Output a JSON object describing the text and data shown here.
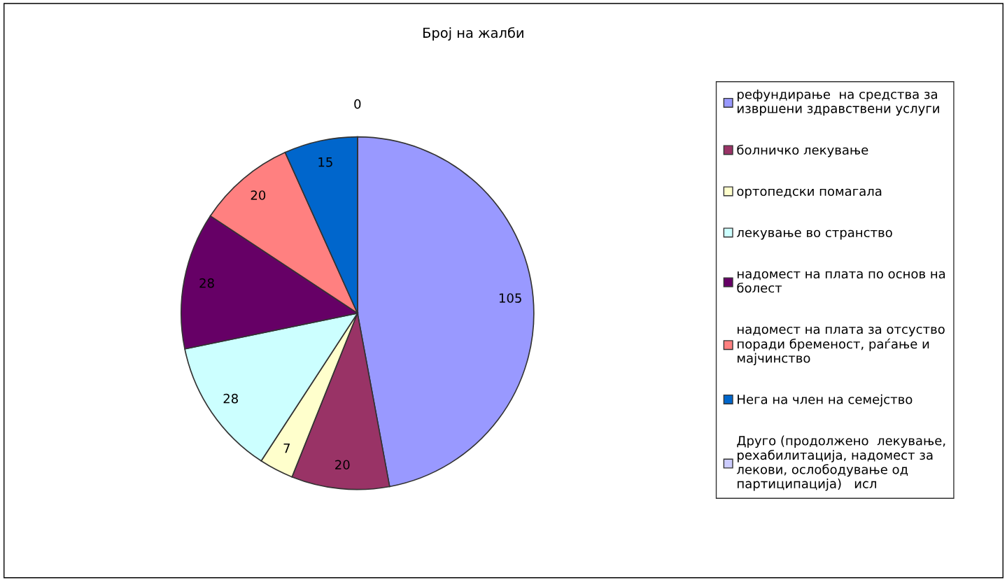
{
  "chart_data": {
    "type": "pie",
    "title": "Број на жалби",
    "categories": [
      "рефундирање  на средства за\nизвршени здравствени услуги",
      "болничко лекување",
      "ортопедски помагала",
      "лекување во странство",
      "надомест на плата по основ на\nболест",
      "надомест на плата за отсуство\nпоради бременост, раѓање и\nмајчинство",
      "Нега на член на семејство",
      "Друго (продолжено  лекување,\nрехабилитација, надомест за\nлекови, ослободување од\nпартиципација)   исл"
    ],
    "values": [
      105,
      20,
      7,
      28,
      28,
      20,
      15,
      0
    ],
    "colors": [
      "#9999ff",
      "#993366",
      "#ffffcc",
      "#ccffff",
      "#660066",
      "#ff8080",
      "#0066cc",
      "#ccccff"
    ],
    "value_labels": [
      "105",
      "20",
      "7",
      "28",
      "28",
      "20",
      "15",
      "0"
    ],
    "legend": "right"
  }
}
